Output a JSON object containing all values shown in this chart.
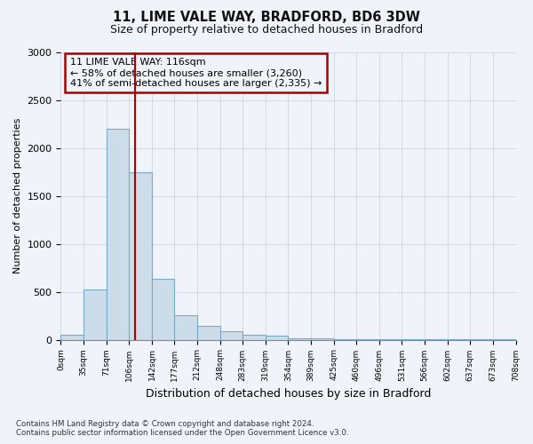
{
  "title1": "11, LIME VALE WAY, BRADFORD, BD6 3DW",
  "title2": "Size of property relative to detached houses in Bradford",
  "xlabel": "Distribution of detached houses by size in Bradford",
  "ylabel": "Number of detached properties",
  "bar_edges": [
    0,
    35,
    71,
    106,
    142,
    177,
    212,
    248,
    283,
    319,
    354,
    389,
    425,
    460,
    496,
    531,
    566,
    602,
    637,
    673,
    708
  ],
  "bar_heights": [
    50,
    520,
    2200,
    1750,
    640,
    260,
    140,
    90,
    55,
    40,
    15,
    10,
    5,
    4,
    3,
    2,
    2,
    1,
    1,
    1
  ],
  "bar_color": "#ccdce8",
  "bar_edgecolor": "#7aaac8",
  "property_size": 116,
  "vline_color": "#aa0000",
  "annotation_text": "11 LIME VALE WAY: 116sqm\n← 58% of detached houses are smaller (3,260)\n41% of semi-detached houses are larger (2,335) →",
  "annotation_box_color": "#aa0000",
  "ylim": [
    0,
    3000
  ],
  "yticks": [
    0,
    500,
    1000,
    1500,
    2000,
    2500,
    3000
  ],
  "footnote": "Contains HM Land Registry data © Crown copyright and database right 2024.\nContains public sector information licensed under the Open Government Licence v3.0.",
  "bg_color": "#f0f4fa",
  "grid_color": "#c8d0dc",
  "title1_fontsize": 10.5,
  "title2_fontsize": 9,
  "ylabel_fontsize": 8,
  "xlabel_fontsize": 9
}
